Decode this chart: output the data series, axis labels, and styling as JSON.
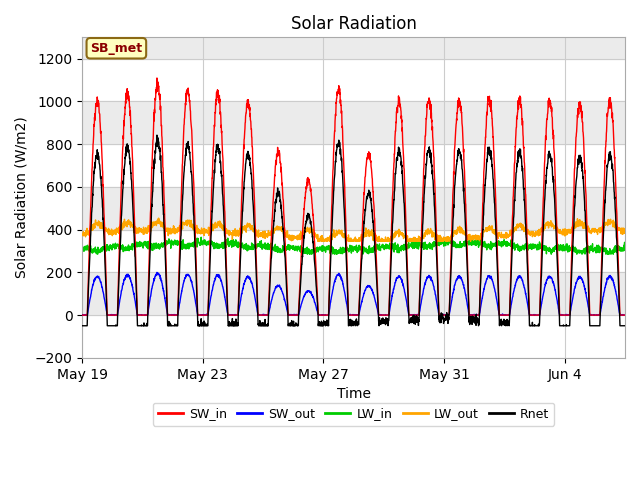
{
  "title": "Solar Radiation",
  "xlabel": "Time",
  "ylabel": "Solar Radiation (W/m2)",
  "ylim": [
    -200,
    1300
  ],
  "yticks": [
    -200,
    0,
    200,
    400,
    600,
    800,
    1000,
    1200
  ],
  "x_tick_labels": [
    "May 19",
    "May 23",
    "May 27",
    "May 31",
    "Jun 4"
  ],
  "x_tick_positions": [
    0,
    4,
    8,
    12,
    16
  ],
  "annotation_label": "SB_met",
  "annotation_color": "#8B0000",
  "annotation_bg": "#FFFFC0",
  "annotation_edge": "#8B6914",
  "legend_entries": [
    "SW_in",
    "SW_out",
    "LW_in",
    "LW_out",
    "Rnet"
  ],
  "line_colors": [
    "#FF0000",
    "#0000FF",
    "#00CC00",
    "#FFA500",
    "#000000"
  ],
  "band_color": "#EBEBEB",
  "plot_bg": "#FFFFFF",
  "num_days": 18,
  "lw_line": 1.0,
  "grid_color": "#CCCCCC"
}
